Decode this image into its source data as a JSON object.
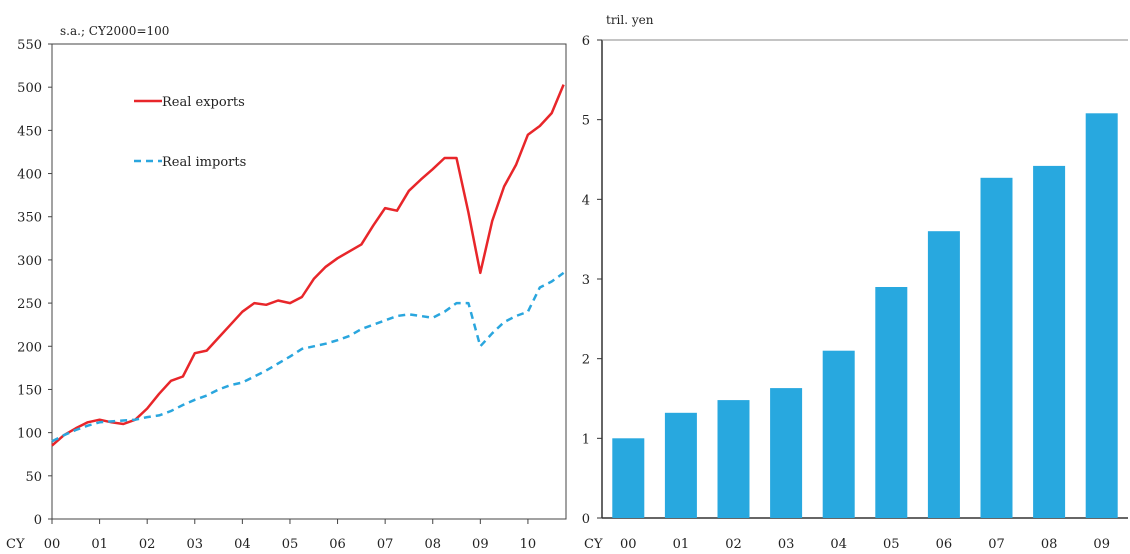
{
  "chart_data": [
    {
      "type": "line",
      "unit_label": "s.a.; CY2000=100",
      "x_label_prefix": "CY",
      "x_tick_labels": [
        "00",
        "01",
        "02",
        "03",
        "04",
        "05",
        "06",
        "07",
        "08",
        "09",
        "10"
      ],
      "y_ticks": [
        0,
        50,
        100,
        150,
        200,
        250,
        300,
        350,
        400,
        450,
        500,
        550
      ],
      "ylim": [
        0,
        550
      ],
      "grid": false,
      "legend_position": "top-left",
      "series": [
        {
          "name": "Real exports",
          "color": "#e8262a",
          "style": "solid",
          "x": [
            2000.0,
            2000.25,
            2000.5,
            2000.75,
            2001.0,
            2001.25,
            2001.5,
            2001.75,
            2002.0,
            2002.25,
            2002.5,
            2002.75,
            2003.0,
            2003.25,
            2003.5,
            2003.75,
            2004.0,
            2004.25,
            2004.5,
            2004.75,
            2005.0,
            2005.25,
            2005.5,
            2005.75,
            2006.0,
            2006.25,
            2006.5,
            2006.75,
            2007.0,
            2007.25,
            2007.5,
            2007.75,
            2008.0,
            2008.25,
            2008.5,
            2008.75,
            2009.0,
            2009.25,
            2009.5,
            2009.75,
            2010.0,
            2010.25,
            2010.5,
            2010.75
          ],
          "values": [
            85,
            97,
            105,
            112,
            115,
            112,
            110,
            115,
            128,
            145,
            160,
            165,
            192,
            195,
            210,
            225,
            240,
            250,
            248,
            253,
            250,
            257,
            278,
            292,
            302,
            310,
            318,
            340,
            360,
            357,
            380,
            393,
            405,
            418,
            418,
            355,
            285,
            345,
            385,
            410,
            445,
            455,
            470,
            503
          ]
        },
        {
          "name": "Real imports",
          "color": "#2aa6de",
          "style": "dashed",
          "x": [
            2000.0,
            2000.25,
            2000.5,
            2000.75,
            2001.0,
            2001.25,
            2001.5,
            2001.75,
            2002.0,
            2002.25,
            2002.5,
            2002.75,
            2003.0,
            2003.25,
            2003.5,
            2003.75,
            2004.0,
            2004.25,
            2004.5,
            2004.75,
            2005.0,
            2005.25,
            2005.5,
            2005.75,
            2006.0,
            2006.25,
            2006.5,
            2006.75,
            2007.0,
            2007.25,
            2007.5,
            2007.75,
            2008.0,
            2008.25,
            2008.5,
            2008.75,
            2009.0,
            2009.25,
            2009.5,
            2009.75,
            2010.0,
            2010.25,
            2010.5,
            2010.75
          ],
          "values": [
            90,
            97,
            103,
            108,
            112,
            113,
            114,
            115,
            118,
            120,
            125,
            132,
            138,
            143,
            150,
            155,
            158,
            165,
            172,
            180,
            188,
            197,
            200,
            203,
            207,
            212,
            220,
            225,
            230,
            235,
            237,
            235,
            233,
            240,
            250,
            250,
            200,
            215,
            228,
            235,
            240,
            268,
            275,
            285
          ]
        }
      ]
    },
    {
      "type": "bar",
      "unit_label": "tril. yen",
      "x_label_prefix": "CY",
      "categories": [
        "00",
        "01",
        "02",
        "03",
        "04",
        "05",
        "06",
        "07",
        "08",
        "09"
      ],
      "values": [
        1.0,
        1.32,
        1.48,
        1.63,
        2.1,
        2.9,
        3.6,
        4.27,
        4.42,
        5.08
      ],
      "y_ticks": [
        0,
        1,
        2,
        3,
        4,
        5,
        6
      ],
      "ylim": [
        0,
        6
      ],
      "grid": false,
      "color": "#28a8df"
    }
  ]
}
